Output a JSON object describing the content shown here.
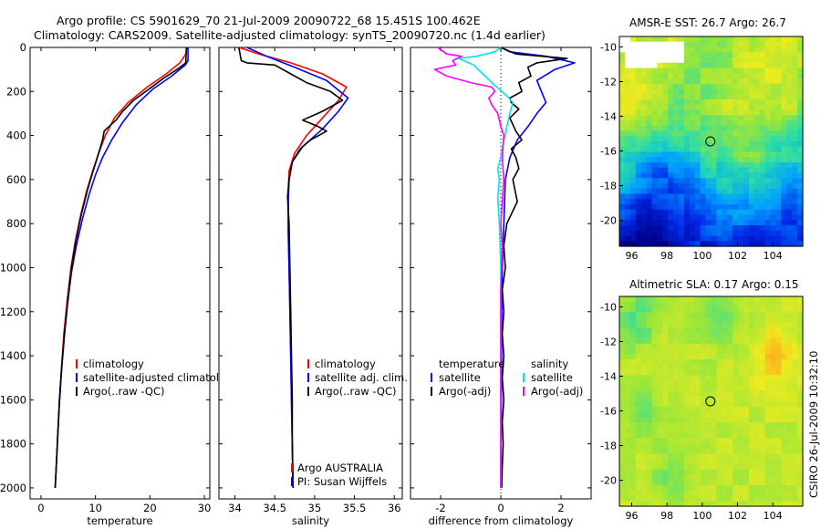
{
  "title_line1": "Argo profile: CS 5901629_70 21-Jul-2009 20090722_68 15.451S 100.462E",
  "title_line2": "Climatology: CARS2009. Satellite-adjusted climatology: synTS_20090720.nc (1.4d earlier)",
  "credit": "CSIRO 26-Jul-2009 10:32:10",
  "colors": {
    "climatology": "#ff0000",
    "satellite": "#0000ff",
    "argo": "#000000",
    "sal_satellite": "#00e5e5",
    "sal_argo": "#ff00ff"
  },
  "chart_data": [
    {
      "id": "temperature",
      "type": "line",
      "xlabel": "temperature",
      "xlim": [
        -2,
        31
      ],
      "ylim": [
        0,
        2050
      ],
      "yreversed": true,
      "xticks": [
        0,
        10,
        20,
        30
      ],
      "yticks": [
        0,
        200,
        400,
        600,
        800,
        1000,
        1200,
        1400,
        1600,
        1800,
        2000
      ],
      "legend": [
        "climatology",
        "satellite-adjusted climatolog",
        "Argo(..raw -QC)"
      ],
      "series": [
        {
          "name": "climatology",
          "color": "#ff0000",
          "points": [
            [
              26.8,
              0
            ],
            [
              26.6,
              30
            ],
            [
              25.5,
              70
            ],
            [
              23,
              120
            ],
            [
              19.5,
              180
            ],
            [
              16,
              250
            ],
            [
              13.5,
              320
            ],
            [
              11.8,
              400
            ],
            [
              10.6,
              480
            ],
            [
              9.5,
              560
            ],
            [
              8.4,
              650
            ],
            [
              7.3,
              760
            ],
            [
              6.3,
              880
            ],
            [
              5.5,
              1000
            ],
            [
              4.8,
              1150
            ],
            [
              4.2,
              1300
            ],
            [
              3.8,
              1450
            ],
            [
              3.4,
              1600
            ],
            [
              3.1,
              1750
            ],
            [
              2.8,
              1900
            ],
            [
              2.6,
              2000
            ]
          ]
        },
        {
          "name": "satellite",
          "color": "#0000ff",
          "points": [
            [
              27,
              0
            ],
            [
              27,
              60
            ],
            [
              26.5,
              80
            ],
            [
              24,
              130
            ],
            [
              20.5,
              190
            ],
            [
              17.5,
              260
            ],
            [
              15,
              340
            ],
            [
              13,
              420
            ],
            [
              11.3,
              500
            ],
            [
              10,
              580
            ],
            [
              8.8,
              670
            ],
            [
              7.6,
              780
            ],
            [
              6.5,
              900
            ],
            [
              5.6,
              1020
            ],
            [
              4.9,
              1160
            ],
            [
              4.3,
              1310
            ],
            [
              3.8,
              1460
            ],
            [
              3.4,
              1610
            ],
            [
              3.1,
              1760
            ],
            [
              2.8,
              1900
            ],
            [
              2.6,
              2000
            ]
          ]
        },
        {
          "name": "Argo",
          "color": "#000000",
          "points": [
            [
              26.7,
              0
            ],
            [
              26.6,
              70
            ],
            [
              25,
              100
            ],
            [
              22.5,
              140
            ],
            [
              19.8,
              190
            ],
            [
              17,
              240
            ],
            [
              15,
              290
            ],
            [
              13.8,
              330
            ],
            [
              12,
              370
            ],
            [
              11.6,
              380
            ],
            [
              11.3,
              420
            ],
            [
              10.6,
              480
            ],
            [
              9.6,
              560
            ],
            [
              8.5,
              650
            ],
            [
              7.4,
              760
            ],
            [
              6.4,
              880
            ],
            [
              5.6,
              1000
            ],
            [
              4.9,
              1150
            ],
            [
              4.3,
              1300
            ],
            [
              3.8,
              1450
            ],
            [
              3.4,
              1600
            ],
            [
              3.1,
              1750
            ],
            [
              2.8,
              1900
            ],
            [
              2.6,
              2000
            ]
          ]
        }
      ]
    },
    {
      "id": "salinity",
      "type": "line",
      "xlabel": "salinity",
      "xlim": [
        33.8,
        36.1
      ],
      "ylim": [
        0,
        2050
      ],
      "yreversed": true,
      "xticks": [
        34,
        34.5,
        35,
        35.5,
        36
      ],
      "legend": [
        "climatology",
        "satellite adj. clim.",
        "Argo(..raw -QC)"
      ],
      "annotation": [
        "Argo AUSTRALIA",
        "PI: Susan Wijffels"
      ],
      "series": [
        {
          "name": "climatology",
          "color": "#ff0000",
          "points": [
            [
              34.05,
              0
            ],
            [
              34.3,
              30
            ],
            [
              34.7,
              70
            ],
            [
              35.1,
              120
            ],
            [
              35.4,
              180
            ],
            [
              35.3,
              240
            ],
            [
              35.1,
              320
            ],
            [
              34.9,
              400
            ],
            [
              34.75,
              480
            ],
            [
              34.68,
              560
            ],
            [
              34.67,
              650
            ],
            [
              34.67,
              800
            ],
            [
              34.68,
              1000
            ],
            [
              34.69,
              1200
            ],
            [
              34.7,
              1400
            ],
            [
              34.71,
              1600
            ],
            [
              34.72,
              1800
            ],
            [
              34.73,
              2000
            ]
          ]
        },
        {
          "name": "satellite",
          "color": "#0000ff",
          "points": [
            [
              34.15,
              0
            ],
            [
              34.4,
              40
            ],
            [
              34.75,
              90
            ],
            [
              35.15,
              150
            ],
            [
              35.42,
              230
            ],
            [
              35.3,
              290
            ],
            [
              35.1,
              370
            ],
            [
              34.85,
              450
            ],
            [
              34.72,
              520
            ],
            [
              34.68,
              600
            ],
            [
              34.67,
              700
            ],
            [
              34.67,
              850
            ],
            [
              34.68,
              1000
            ],
            [
              34.69,
              1200
            ],
            [
              34.7,
              1400
            ],
            [
              34.71,
              1600
            ],
            [
              34.72,
              1800
            ],
            [
              34.73,
              2000
            ]
          ]
        },
        {
          "name": "Argo",
          "color": "#000000",
          "points": [
            [
              34.05,
              0
            ],
            [
              34.08,
              60
            ],
            [
              34.15,
              70
            ],
            [
              34.5,
              80
            ],
            [
              34.7,
              120
            ],
            [
              34.9,
              160
            ],
            [
              35.2,
              200
            ],
            [
              35.35,
              240
            ],
            [
              35.1,
              290
            ],
            [
              34.85,
              330
            ],
            [
              35.05,
              360
            ],
            [
              35.15,
              380
            ],
            [
              34.95,
              420
            ],
            [
              34.82,
              460
            ],
            [
              34.72,
              520
            ],
            [
              34.68,
              600
            ],
            [
              34.66,
              680
            ],
            [
              34.68,
              800
            ],
            [
              34.69,
              1000
            ],
            [
              34.7,
              1200
            ],
            [
              34.71,
              1400
            ],
            [
              34.72,
              1600
            ],
            [
              34.72,
              1800
            ],
            [
              34.73,
              2000
            ]
          ]
        }
      ]
    },
    {
      "id": "difference",
      "type": "line",
      "xlabel": "difference from climatology",
      "xlim": [
        -3,
        3
      ],
      "ylim": [
        0,
        2050
      ],
      "yreversed": true,
      "xticks": [
        -2,
        0,
        2
      ],
      "zero_line": 0,
      "legend_temperature": [
        "temperature",
        "satellite",
        "Argo(-adj)"
      ],
      "legend_salinity": [
        "salinity",
        "satellite",
        "Argo(-adj)"
      ],
      "series": [
        {
          "name": "temperature satellite",
          "color": "#0000ff",
          "points": [
            [
              0,
              0
            ],
            [
              0.3,
              20
            ],
            [
              1.5,
              40
            ],
            [
              2.45,
              70
            ],
            [
              1.8,
              100
            ],
            [
              1.2,
              150
            ],
            [
              1.35,
              200
            ],
            [
              1.5,
              250
            ],
            [
              1.2,
              300
            ],
            [
              0.9,
              360
            ],
            [
              0.55,
              420
            ],
            [
              0.3,
              500
            ],
            [
              0.15,
              600
            ],
            [
              0.1,
              800
            ],
            [
              0.05,
              1000
            ],
            [
              0.03,
              1200
            ],
            [
              0.02,
              1500
            ],
            [
              0,
              2000
            ]
          ]
        },
        {
          "name": "temperature Argo",
          "color": "#000000",
          "points": [
            [
              0,
              0
            ],
            [
              0.5,
              30
            ],
            [
              2.2,
              50
            ],
            [
              1.2,
              70
            ],
            [
              0.9,
              90
            ],
            [
              1,
              130
            ],
            [
              0.6,
              160
            ],
            [
              0.7,
              200
            ],
            [
              0.3,
              230
            ],
            [
              0.35,
              250
            ],
            [
              0.6,
              280
            ],
            [
              0.3,
              320
            ],
            [
              0.5,
              380
            ],
            [
              0.7,
              420
            ],
            [
              0.35,
              460
            ],
            [
              0.5,
              500
            ],
            [
              0.6,
              550
            ],
            [
              0.4,
              600
            ],
            [
              0.55,
              700
            ],
            [
              0.2,
              800
            ],
            [
              0.1,
              900
            ],
            [
              0.15,
              1000
            ],
            [
              0.05,
              1100
            ],
            [
              0.1,
              1200
            ],
            [
              0.05,
              1300
            ],
            [
              0.1,
              1400
            ],
            [
              0.05,
              1500
            ],
            [
              0.1,
              1600
            ],
            [
              0.05,
              1700
            ],
            [
              0.08,
              1800
            ],
            [
              0.05,
              1900
            ],
            [
              0.03,
              2000
            ]
          ]
        },
        {
          "name": "salinity satellite",
          "color": "#00e5e5",
          "points": [
            [
              0,
              0
            ],
            [
              -0.2,
              20
            ],
            [
              -0.8,
              40
            ],
            [
              -1.4,
              50
            ],
            [
              -0.9,
              80
            ],
            [
              -0.6,
              120
            ],
            [
              -0.3,
              160
            ],
            [
              0.2,
              220
            ],
            [
              0.4,
              250
            ],
            [
              0.3,
              300
            ],
            [
              0.2,
              360
            ],
            [
              0.1,
              420
            ],
            [
              0,
              500
            ],
            [
              -0.1,
              550
            ],
            [
              -0.05,
              600
            ],
            [
              -0.1,
              680
            ],
            [
              -0.05,
              800
            ],
            [
              0,
              1000
            ],
            [
              0,
              1500
            ],
            [
              0,
              2000
            ]
          ]
        },
        {
          "name": "salinity Argo",
          "color": "#ff00ff",
          "points": [
            [
              -2.1,
              0
            ],
            [
              -1.8,
              30
            ],
            [
              -1.3,
              40
            ],
            [
              -1.6,
              60
            ],
            [
              -1.5,
              80
            ],
            [
              -2.2,
              100
            ],
            [
              -1.8,
              130
            ],
            [
              -1,
              160
            ],
            [
              -0.3,
              180
            ],
            [
              -0.2,
              200
            ],
            [
              -0.4,
              230
            ],
            [
              -0.3,
              260
            ],
            [
              -0.1,
              300
            ],
            [
              0,
              360
            ],
            [
              0.1,
              400
            ],
            [
              0.05,
              500
            ],
            [
              0.1,
              600
            ],
            [
              0.05,
              700
            ],
            [
              0,
              800
            ],
            [
              0.05,
              900
            ],
            [
              0,
              1100
            ],
            [
              0,
              1500
            ],
            [
              0,
              2000
            ]
          ]
        }
      ]
    },
    {
      "id": "sst_map",
      "type": "heatmap",
      "title": "AMSR-E SST: 26.7  Argo: 26.7",
      "xlim": [
        95.3,
        105.7
      ],
      "ylim": [
        -21.5,
        -9.4
      ],
      "xticks": [
        96,
        98,
        100,
        102,
        104
      ],
      "yticks": [
        -10,
        -12,
        -14,
        -16,
        -18,
        -20
      ],
      "marker": {
        "lon": 100.462,
        "lat": -15.451
      }
    },
    {
      "id": "sla_map",
      "type": "heatmap",
      "title": "Altimetric SLA: 0.17  Argo: 0.15",
      "xlim": [
        95.3,
        105.7
      ],
      "ylim": [
        -21.5,
        -9.4
      ],
      "xticks": [
        96,
        98,
        100,
        102,
        104
      ],
      "yticks": [
        -10,
        -12,
        -14,
        -16,
        -18,
        -20
      ],
      "marker": {
        "lon": 100.462,
        "lat": -15.451
      }
    }
  ]
}
